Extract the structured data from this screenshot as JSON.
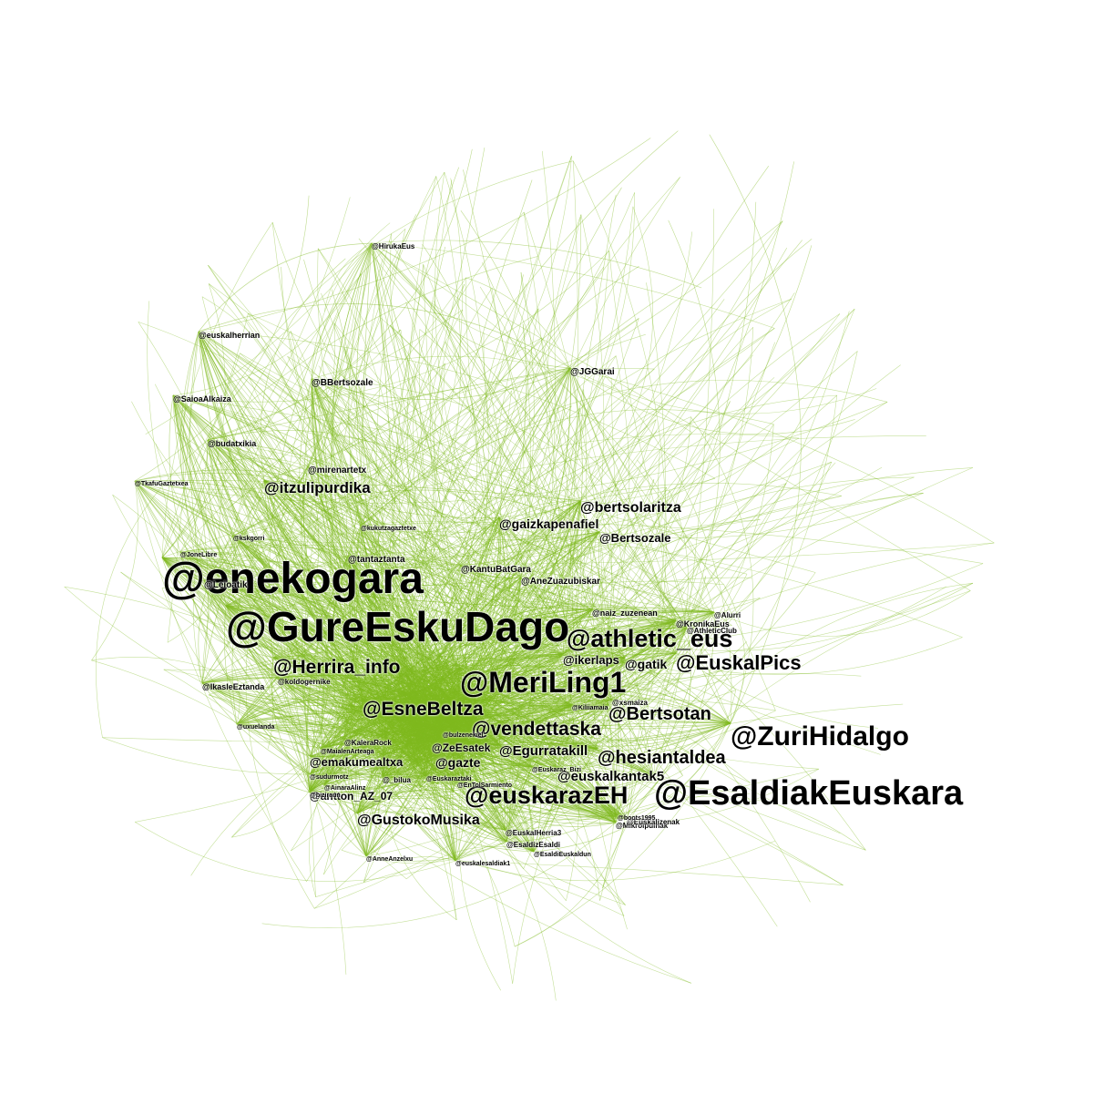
{
  "diagram": {
    "type": "network-graph",
    "edge_color": "#7fba1f",
    "label_color": "#000000",
    "background": "#ffffff",
    "nodes": [
      {
        "id": "enekogara",
        "label": "@enekogara",
        "size": 48
      },
      {
        "id": "GureEskuDago",
        "label": "@GureEskuDago",
        "size": 46
      },
      {
        "id": "EsaldiakEuskara",
        "label": "@EsaldiakEuskara",
        "size": 38
      },
      {
        "id": "MeriLing1",
        "label": "@MeriLing1",
        "size": 32
      },
      {
        "id": "ZuriHidalgo",
        "label": "@ZuriHidalgo",
        "size": 30
      },
      {
        "id": "athletic_eus",
        "label": "@athletic_eus",
        "size": 27
      },
      {
        "id": "euskarazEH",
        "label": "@euskarazEH",
        "size": 27
      },
      {
        "id": "EuskalPics",
        "label": "@EuskalPics",
        "size": 22
      },
      {
        "id": "Herrira_info",
        "label": "@Herrira_info",
        "size": 21
      },
      {
        "id": "vendettaska",
        "label": "@vendettaska",
        "size": 21
      },
      {
        "id": "EsneBeltza",
        "label": "@EsneBeltza",
        "size": 21
      },
      {
        "id": "Bertsotan",
        "label": "@Bertsotan",
        "size": 20
      },
      {
        "id": "hesiantaldea",
        "label": "@hesiantaldea",
        "size": 20
      },
      {
        "id": "itzulipurdika",
        "label": "@itzulipurdika",
        "size": 17
      },
      {
        "id": "GustokoMusika",
        "label": "@GustokoMusika",
        "size": 16
      },
      {
        "id": "bertsolaritza",
        "label": "@bertsolaritza",
        "size": 16
      },
      {
        "id": "euskalkantak5",
        "label": "@euskalkantak5",
        "size": 15
      },
      {
        "id": "Egurratakill",
        "label": "@Egurratakill",
        "size": 15
      },
      {
        "id": "gaizkapenafiel",
        "label": "@gaizkapenafiel",
        "size": 14
      },
      {
        "id": "emakumealtxa",
        "label": "@emakumealtxa",
        "size": 13
      },
      {
        "id": "Bertsozale",
        "label": "@Bertsozale",
        "size": 13
      },
      {
        "id": "gazte",
        "label": "@gazte",
        "size": 14
      },
      {
        "id": "gatik",
        "label": "@gatik",
        "size": 14
      },
      {
        "id": "ikerlaps",
        "label": "@ikerlaps",
        "size": 13
      },
      {
        "id": "antton_AZ_07",
        "label": "@antton_AZ_07",
        "size": 12
      },
      {
        "id": "ZeEsatek",
        "label": "@ZeEsatek",
        "size": 12
      },
      {
        "id": "AneZuazubiskar",
        "label": "@AneZuazubiskar",
        "size": 10
      },
      {
        "id": "KantuBatGara",
        "label": "@KantuBatGara",
        "size": 10
      },
      {
        "id": "tantaztanta",
        "label": "@tantaztanta",
        "size": 10
      },
      {
        "id": "Leioatik",
        "label": "@Leioatik",
        "size": 10
      },
      {
        "id": "mirenartetx",
        "label": "@mirenartetx",
        "size": 10
      },
      {
        "id": "BBertsozale",
        "label": "@BBertsozale",
        "size": 10
      },
      {
        "id": "JGGarai",
        "label": "@JGGarai",
        "size": 10
      },
      {
        "id": "euskalherrian",
        "label": "@euskalherrian",
        "size": 9
      },
      {
        "id": "SaioaAlkaiza",
        "label": "@SaioaAlkaiza",
        "size": 9
      },
      {
        "id": "budatxikia",
        "label": "@budatxikia",
        "size": 9
      },
      {
        "id": "HirukaEus",
        "label": "@HirukaEus",
        "size": 8
      },
      {
        "id": "IkasleEztanda",
        "label": "@IkasleEztanda",
        "size": 9
      },
      {
        "id": "naiz_zuzenean",
        "label": "@naiz_zuzenean",
        "size": 9
      },
      {
        "id": "KronikaEus",
        "label": "@KronikaEus",
        "size": 9
      },
      {
        "id": "Herriralnfo2",
        "label": "@koldogernike",
        "size": 8
      },
      {
        "id": "KaleraRock",
        "label": "@KaleraRock",
        "size": 8
      },
      {
        "id": "EuskalHerria3",
        "label": "@EuskalHerria3",
        "size": 8
      },
      {
        "id": "EsaldizEsaldi",
        "label": "@EsaldizEsaldi",
        "size": 8
      },
      {
        "id": "Mikroipuinak",
        "label": "@Mikroipuinak",
        "size": 8
      },
      {
        "id": "Euskalizenak",
        "label": "@Euskalizenak",
        "size": 8
      },
      {
        "id": "Alurri",
        "label": "@Alurri",
        "size": 8
      },
      {
        "id": "AthleticClub",
        "label": "@AthleticClub",
        "size": 8
      },
      {
        "id": "xsmaiza",
        "label": "@xsmaiza",
        "size": 8
      },
      {
        "id": "kukutzagaztetxe",
        "label": "@kukutzagaztetxe",
        "size": 7
      },
      {
        "id": "kskgorri",
        "label": "@kskgorri",
        "size": 7
      },
      {
        "id": "JoneLibre",
        "label": "@JoneLibre",
        "size": 7
      },
      {
        "id": "TkafuGaztetxea",
        "label": "@TkafuGaztetxea",
        "size": 7
      },
      {
        "id": "uxuelanda",
        "label": "@uxuelanda",
        "size": 7
      },
      {
        "id": "MaialenArteaga",
        "label": "@MaialenArteaga",
        "size": 7
      },
      {
        "id": "sudurmotz",
        "label": "@sudurmotz",
        "size": 7
      },
      {
        "id": "AinaraAlinz",
        "label": "@AinaraAlinz",
        "size": 7
      },
      {
        "id": "biziraun",
        "label": "@biziraun",
        "size": 7
      },
      {
        "id": "bilua",
        "label": "@_bilua",
        "size": 8
      },
      {
        "id": "Euskaraztaki",
        "label": "@Euskaraztaki",
        "size": 7
      },
      {
        "id": "EnTolSarmiento",
        "label": "@EnTolSarmiento",
        "size": 7
      },
      {
        "id": "bulzenekiel",
        "label": "@bulzenekiel",
        "size": 7
      },
      {
        "id": "Euskaraz_Bizi",
        "label": "@Euskaraz_Bizi",
        "size": 7
      },
      {
        "id": "AnneAnzelxu",
        "label": "@AnneAnzelxu",
        "size": 7
      },
      {
        "id": "euskalesaldiak1",
        "label": "@euskalesaldiak1",
        "size": 7
      },
      {
        "id": "Boots1995",
        "label": "@boots1995",
        "size": 7
      },
      {
        "id": "Egurretakill2",
        "label": "@Kiliiamaia",
        "size": 7
      },
      {
        "id": "EsaldEuskaldun",
        "label": "@EsaldiEuskaldun",
        "size": 7
      }
    ]
  }
}
